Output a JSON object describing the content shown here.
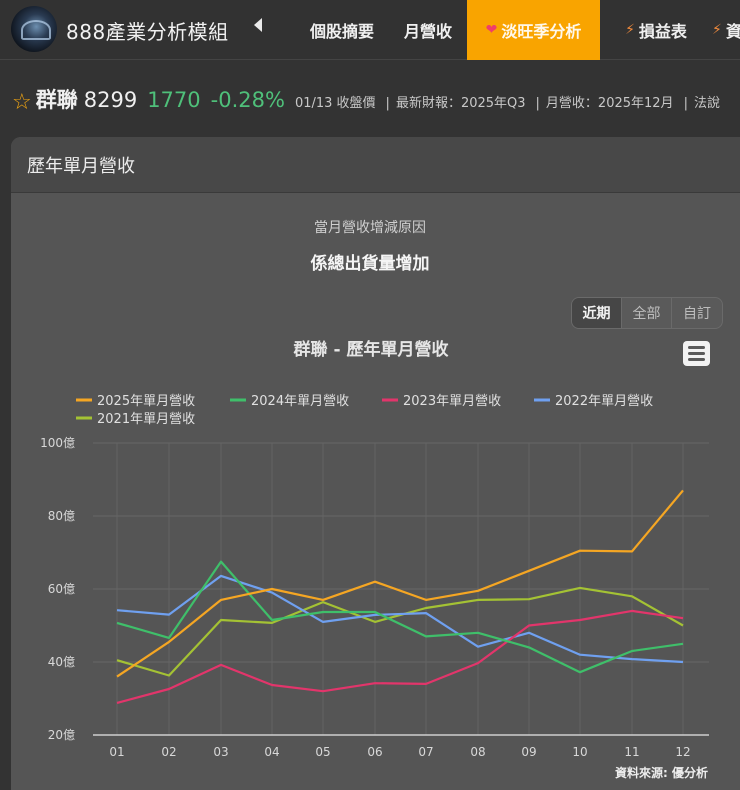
{
  "topbar": {
    "brand": "888產業分析模組",
    "tabs": [
      {
        "label": "個股摘要",
        "icon": "",
        "active": false
      },
      {
        "label": "月營收",
        "icon": "",
        "active": false
      },
      {
        "label": "淡旺季分析",
        "icon": "heart-icon",
        "active": true
      },
      {
        "label": "損益表",
        "icon": "bolt-icon",
        "active": false
      },
      {
        "label": "資",
        "icon": "bolt-icon",
        "active": false
      }
    ]
  },
  "stock": {
    "name": "群聯",
    "code": "8299",
    "price": "1770",
    "change": "-0.28%",
    "price_date": "01/13 收盤價",
    "latest_report": "最新財報：2025年Q3",
    "monthly_revenue": "月營收：2025年12月",
    "more": "法說"
  },
  "card": {
    "title": "歷年單月營收",
    "reason_label": "當月營收增減原因",
    "reason_value": "係總出貨量增加",
    "range_buttons": [
      {
        "label": "近期",
        "active": true
      },
      {
        "label": "全部",
        "active": false
      },
      {
        "label": "自訂",
        "active": false
      }
    ],
    "menu_icon": "hamburger-menu-icon"
  },
  "chart_data": {
    "type": "line",
    "title": "群聯 - 歷年單月營收",
    "xlabel": "",
    "ylabel": "",
    "unit": "億",
    "categories": [
      "01",
      "02",
      "03",
      "04",
      "05",
      "06",
      "07",
      "08",
      "09",
      "10",
      "11",
      "12"
    ],
    "ylim": [
      20,
      100
    ],
    "yticks": [
      20,
      40,
      60,
      80,
      100
    ],
    "ytick_labels": [
      "20億",
      "40億",
      "60億",
      "80億",
      "100億"
    ],
    "grid": true,
    "legend_position": "top-left",
    "source": "資料來源: 優分析",
    "series": [
      {
        "name": "2025年單月營收",
        "color": "#f5a623",
        "values": [
          36,
          45.5,
          57,
          60,
          57,
          62,
          57,
          59.5,
          65,
          70.5,
          70.3,
          87
        ]
      },
      {
        "name": "2024年單月營收",
        "color": "#3fbf6a",
        "values": [
          50.7,
          46.6,
          67.5,
          51.5,
          53.7,
          53.7,
          47,
          48,
          44,
          37.2,
          43,
          45
        ]
      },
      {
        "name": "2023年單月營收",
        "color": "#e2356b",
        "values": [
          28.8,
          32.6,
          39.2,
          33.7,
          32,
          34.2,
          34,
          39.7,
          50,
          51.5,
          54,
          52
        ]
      },
      {
        "name": "2022年單月營收",
        "color": "#6fa0f0",
        "values": [
          54.2,
          53,
          63.6,
          59,
          51,
          52.9,
          53.4,
          44.2,
          48,
          42,
          40.8,
          40
        ]
      },
      {
        "name": "2021年單月營收",
        "color": "#a4c234",
        "values": [
          40.5,
          36.3,
          51.5,
          50.7,
          56.4,
          51,
          54.8,
          57,
          57.2,
          60.3,
          58,
          50
        ]
      }
    ]
  }
}
